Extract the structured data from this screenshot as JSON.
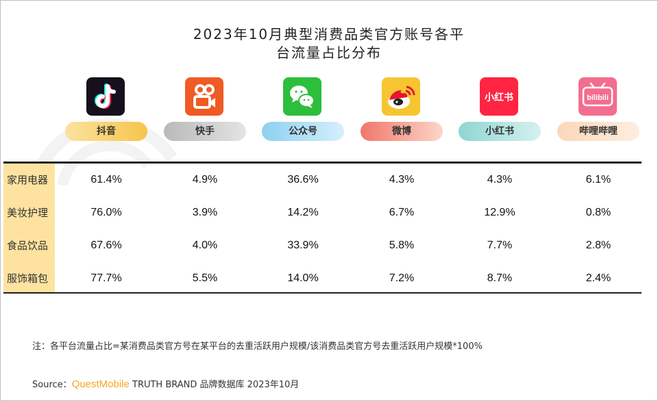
{
  "title": {
    "line1": "2023年10月典型消费品类官方账号各平",
    "line2": "台流量占比分布"
  },
  "platforms": [
    {
      "name": "抖音",
      "icon": "douyin-icon"
    },
    {
      "name": "快手",
      "icon": "kuaishou-icon"
    },
    {
      "name": "公众号",
      "icon": "wechat-icon"
    },
    {
      "name": "微博",
      "icon": "weibo-icon"
    },
    {
      "name": "小红书",
      "icon": "xiaohongshu-icon",
      "logo_text": "小红书"
    },
    {
      "name": "哔哩哔哩",
      "icon": "bilibili-icon",
      "logo_text": "bilibili"
    }
  ],
  "chart_data": {
    "type": "table",
    "columns": [
      "抖音",
      "快手",
      "公众号",
      "微博",
      "小红书",
      "哔哩哔哩"
    ],
    "rows": [
      {
        "category": "家用电器",
        "values": [
          "61.4%",
          "4.9%",
          "36.6%",
          "4.3%",
          "4.3%",
          "6.1%"
        ]
      },
      {
        "category": "美妆护理",
        "values": [
          "76.0%",
          "3.9%",
          "14.2%",
          "6.7%",
          "12.9%",
          "0.8%"
        ]
      },
      {
        "category": "食品饮品",
        "values": [
          "67.6%",
          "4.0%",
          "33.9%",
          "5.8%",
          "7.7%",
          "2.8%"
        ]
      },
      {
        "category": "服饰箱包",
        "values": [
          "77.7%",
          "5.5%",
          "14.0%",
          "7.2%",
          "8.7%",
          "2.4%"
        ]
      }
    ]
  },
  "note": "注：各平台流量占比=某消费品类官方号在某平台的去重活跃用户规模/该消费品类官方号去重活跃用户规模*100%",
  "source": {
    "prefix": "Source：",
    "brand": "QuestMobile",
    "rest": " TRUTH BRAND 品牌数据库 2023年10月"
  },
  "colors": {
    "category_column": "#fde39f",
    "brand_text": "#f5a623",
    "rule": "#1e1e1e"
  }
}
